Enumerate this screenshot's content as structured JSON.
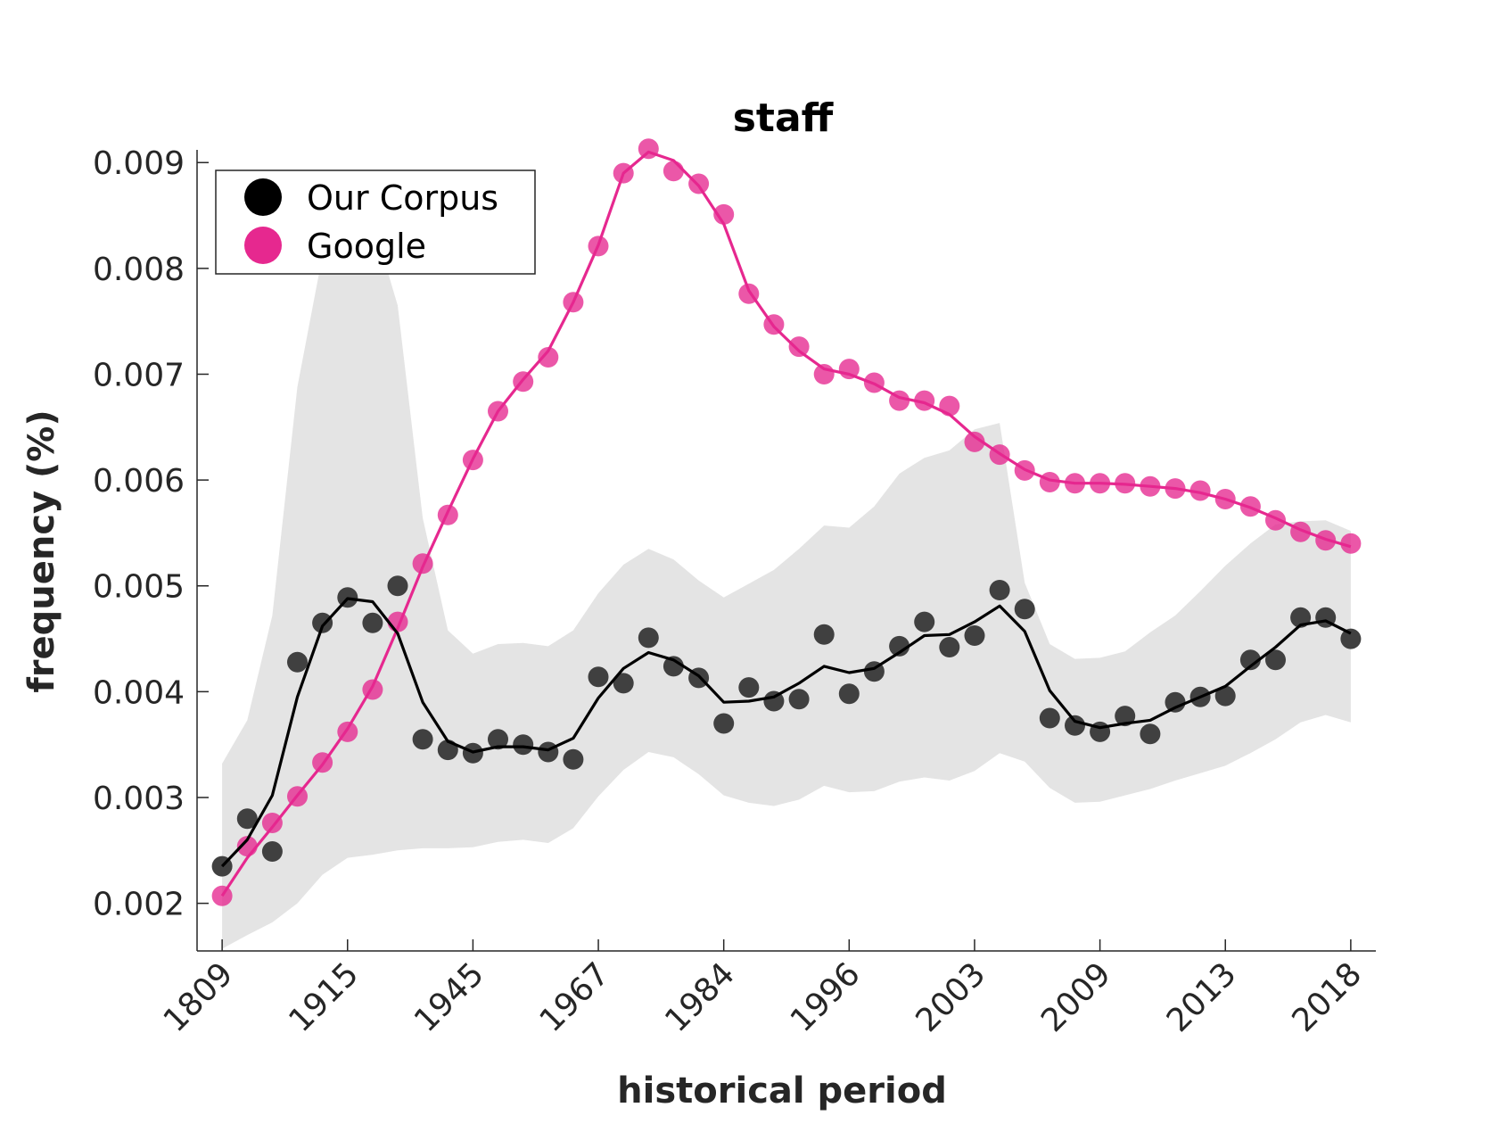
{
  "chart_data": {
    "type": "line",
    "title": "staff",
    "xlabel": "historical period",
    "ylabel": "frequency (%)",
    "ylim": [
      0.00155,
      0.00912
    ],
    "yticks": [
      "0.002",
      "0.003",
      "0.004",
      "0.005",
      "0.006",
      "0.007",
      "0.008",
      "0.009"
    ],
    "ytick_values": [
      0.002,
      0.003,
      0.004,
      0.005,
      0.006,
      0.007,
      0.008,
      0.009
    ],
    "xtick_labels": [
      "1809",
      "1915",
      "1945",
      "1967",
      "1984",
      "1996",
      "2003",
      "2009",
      "2013",
      "2018"
    ],
    "xtick_positions": [
      0,
      5,
      10,
      15,
      20,
      25,
      30,
      35,
      40,
      45
    ],
    "xlim": [
      -1,
      46
    ],
    "legend_position": "top-left",
    "grid": false,
    "colors": {
      "corpus_points": "#404040",
      "corpus_line": "#000000",
      "google": "#e6288f",
      "band": "#e4e4e4",
      "legend_corpus": "#000000",
      "legend_google": "#e6288f"
    },
    "series": [
      {
        "name": "Our Corpus",
        "points": [
          0.00235,
          0.0028,
          0.00249,
          0.00428,
          0.00465,
          0.00489,
          0.00465,
          0.005,
          0.00355,
          0.00345,
          0.00342,
          0.00355,
          0.0035,
          0.00343,
          0.00336,
          0.00414,
          0.00408,
          0.00451,
          0.00424,
          0.00413,
          0.0037,
          0.00404,
          0.00391,
          0.00393,
          0.00454,
          0.00398,
          0.00419,
          0.00443,
          0.00466,
          0.00442,
          0.00453,
          0.00496,
          0.00478,
          0.00375,
          0.00368,
          0.00362,
          0.00377,
          0.0036,
          0.0039,
          0.00395,
          0.00396,
          0.0043,
          0.0043,
          0.0047,
          0.0047,
          0.0045
        ],
        "smoothed": [
          0.00235,
          0.0026,
          0.00302,
          0.00395,
          0.00462,
          0.00488,
          0.00485,
          0.00455,
          0.0039,
          0.00353,
          0.00343,
          0.00348,
          0.00348,
          0.00345,
          0.00356,
          0.00394,
          0.00422,
          0.00437,
          0.0043,
          0.00415,
          0.0039,
          0.00391,
          0.00395,
          0.00408,
          0.00424,
          0.00418,
          0.00422,
          0.00437,
          0.00453,
          0.00454,
          0.00466,
          0.00481,
          0.00457,
          0.00401,
          0.00372,
          0.00366,
          0.0037,
          0.00373,
          0.00385,
          0.00395,
          0.00405,
          0.00424,
          0.00442,
          0.00463,
          0.00467,
          0.00455
        ]
      },
      {
        "name": "Google",
        "points": [
          0.00207,
          0.00254,
          0.00276,
          0.00301,
          0.00333,
          0.00362,
          0.00402,
          0.00466,
          0.00521,
          0.00567,
          0.00619,
          0.00665,
          0.00693,
          0.00716,
          0.00768,
          0.00821,
          0.0089,
          0.00913,
          0.00892,
          0.0088,
          0.00851,
          0.00776,
          0.00747,
          0.00726,
          0.007,
          0.00705,
          0.00692,
          0.00675,
          0.00675,
          0.0067,
          0.00636,
          0.00624,
          0.00609,
          0.00598,
          0.00597,
          0.00597,
          0.00597,
          0.00594,
          0.00592,
          0.0059,
          0.00582,
          0.00575,
          0.00562,
          0.00551,
          0.00543,
          0.0054
        ],
        "smoothed": [
          0.00207,
          0.00243,
          0.00272,
          0.00302,
          0.00331,
          0.00365,
          0.00405,
          0.0046,
          0.00518,
          0.0057,
          0.0062,
          0.00665,
          0.00695,
          0.00722,
          0.00768,
          0.00822,
          0.0089,
          0.0091,
          0.00902,
          0.00878,
          0.00842,
          0.00779,
          0.00745,
          0.00722,
          0.00705,
          0.007,
          0.00691,
          0.00678,
          0.00673,
          0.00662,
          0.00641,
          0.00625,
          0.0061,
          0.006,
          0.00597,
          0.00597,
          0.00596,
          0.00594,
          0.00592,
          0.00588,
          0.00582,
          0.00574,
          0.00564,
          0.00553,
          0.00544,
          0.00537
        ]
      }
    ],
    "band": {
      "upper": [
        0.00332,
        0.00373,
        0.00472,
        0.00688,
        0.00812,
        0.00858,
        0.00845,
        0.00765,
        0.00564,
        0.00458,
        0.00436,
        0.00445,
        0.00446,
        0.00443,
        0.00458,
        0.00493,
        0.0052,
        0.00535,
        0.00525,
        0.00505,
        0.00489,
        0.00502,
        0.00515,
        0.00535,
        0.00557,
        0.00555,
        0.00575,
        0.00606,
        0.00621,
        0.00628,
        0.00648,
        0.00654,
        0.00503,
        0.00445,
        0.00431,
        0.00432,
        0.00438,
        0.00456,
        0.00472,
        0.00495,
        0.00519,
        0.0054,
        0.00558,
        0.00561,
        0.00562,
        0.00552
      ],
      "lower": [
        0.00157,
        0.0017,
        0.00182,
        0.002,
        0.00227,
        0.00243,
        0.00246,
        0.0025,
        0.00252,
        0.00252,
        0.00253,
        0.00258,
        0.0026,
        0.00257,
        0.00271,
        0.00301,
        0.00326,
        0.00343,
        0.00338,
        0.00322,
        0.00302,
        0.00295,
        0.00292,
        0.00298,
        0.00311,
        0.00305,
        0.00306,
        0.00315,
        0.00319,
        0.00316,
        0.00325,
        0.00342,
        0.00334,
        0.00309,
        0.00295,
        0.00296,
        0.00302,
        0.00308,
        0.00316,
        0.00323,
        0.0033,
        0.00342,
        0.00355,
        0.00371,
        0.00378,
        0.00371
      ]
    }
  }
}
